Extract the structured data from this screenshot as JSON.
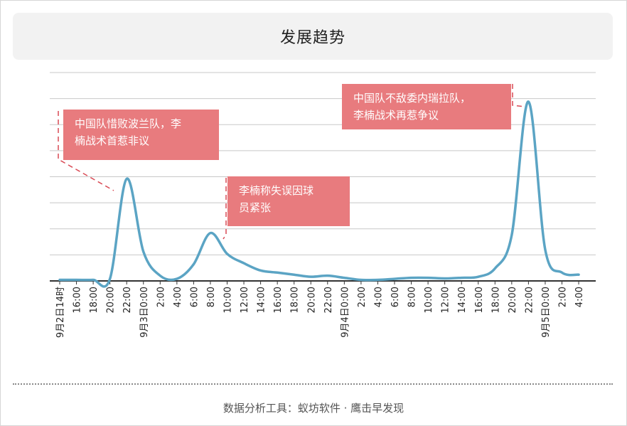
{
  "title": "发展趋势",
  "footer": "数据分析工具：蚁坊软件 · 鹰击早发现",
  "colors": {
    "line": "#5ba4c4",
    "annotation_bg": "#e87b7e",
    "annotation_leader": "#d94a55",
    "grid": "#c8c8c8",
    "axis": "#333333"
  },
  "chart_data": {
    "type": "line",
    "title": "发展趋势",
    "xlabel": "",
    "ylabel": "",
    "grid": true,
    "legend": "none",
    "y_axis_labels": false,
    "ylim": [
      0,
      100
    ],
    "categories": [
      "9月2日14时",
      "16:00",
      "18:00",
      "20:00",
      "22:00",
      "9月3日0:00",
      "2:00",
      "4:00",
      "6:00",
      "8:00",
      "10:00",
      "12:00",
      "14:00",
      "16:00",
      "18:00",
      "20:00",
      "22:00",
      "9月4日0:00",
      "2:00",
      "4:00",
      "6:00",
      "8:00",
      "10:00",
      "12:00",
      "14:00",
      "16:00",
      "18:00",
      "20:00",
      "22:00",
      "9月5日0:00",
      "2:00",
      "4:00"
    ],
    "series": [
      {
        "values": [
          0.5,
          0.5,
          0.5,
          1,
          49,
          14,
          2.5,
          1,
          8,
          23,
          13,
          8.5,
          5,
          4,
          3,
          2,
          2.5,
          1.5,
          0.5,
          0.5,
          1,
          1.5,
          1.5,
          1.2,
          1.5,
          2,
          6,
          22,
          86,
          15,
          4,
          3
        ]
      }
    ],
    "annotations": [
      {
        "lines": [
          "中国队惜败波兰队，李",
          "楠战术首惹非议"
        ],
        "category": "22:00",
        "series_index": 0
      },
      {
        "lines": [
          "李楠称失误因球",
          "员紧张"
        ],
        "category": "8:00",
        "series_index": 0
      },
      {
        "lines": [
          "中国队不敌委内瑞拉队，",
          "李楠战术再惹争议"
        ],
        "category": "22:00",
        "series_index": 0,
        "occurrence": 2
      }
    ]
  }
}
